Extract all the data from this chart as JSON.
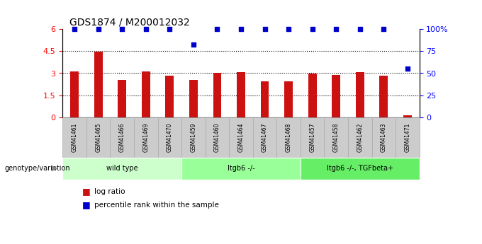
{
  "title": "GDS1874 / M200012032",
  "samples": [
    "GSM41461",
    "GSM41465",
    "GSM41466",
    "GSM41469",
    "GSM41470",
    "GSM41459",
    "GSM41460",
    "GSM41464",
    "GSM41467",
    "GSM41468",
    "GSM41457",
    "GSM41458",
    "GSM41462",
    "GSM41463",
    "GSM41471"
  ],
  "log_ratio": [
    3.1,
    4.45,
    2.55,
    3.1,
    2.85,
    2.55,
    3.0,
    3.05,
    2.45,
    2.45,
    2.98,
    2.9,
    3.05,
    2.85,
    0.12
  ],
  "percentile": [
    100,
    100,
    100,
    100,
    100,
    83,
    100,
    100,
    100,
    100,
    100,
    100,
    100,
    100,
    55
  ],
  "groups": [
    {
      "label": "wild type",
      "start": 0,
      "end": 5,
      "color": "#ccffcc"
    },
    {
      "label": "Itgb6 -/-",
      "start": 5,
      "end": 10,
      "color": "#99ff99"
    },
    {
      "label": "Itgb6 -/-, TGFbeta+",
      "start": 10,
      "end": 15,
      "color": "#66ee66"
    }
  ],
  "bar_color": "#cc1111",
  "dot_color": "#0000cc",
  "left_ylim": [
    0,
    6
  ],
  "left_yticks": [
    0,
    1.5,
    3.0,
    4.5,
    6
  ],
  "left_yticklabels": [
    "0",
    "1.5",
    "3",
    "4.5",
    "6"
  ],
  "right_ylim": [
    0,
    100
  ],
  "right_yticks": [
    0,
    25,
    50,
    75,
    100
  ],
  "right_yticklabels": [
    "0",
    "25",
    "50",
    "75",
    "100%"
  ],
  "dotted_lines": [
    1.5,
    3.0,
    4.5
  ],
  "legend_log_ratio": "log ratio",
  "legend_percentile": "percentile rank within the sample",
  "genotype_label": "genotype/variation",
  "bar_width": 0.35,
  "sample_box_color": "#cccccc",
  "sample_box_edge": "#aaaaaa"
}
